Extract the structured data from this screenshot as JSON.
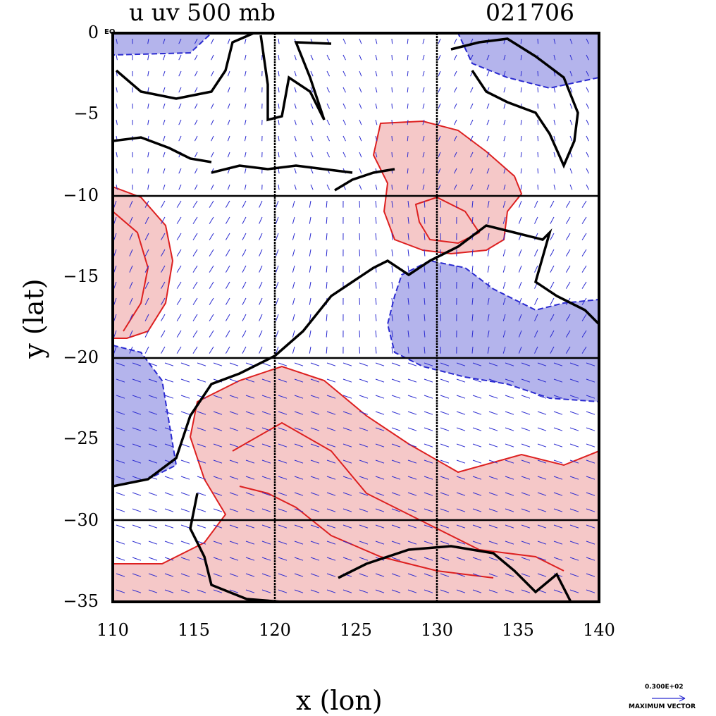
{
  "title_left": "u uv 500 mb",
  "title_right": "021706",
  "xlabel": "x (lon)",
  "ylabel": "y (lat)",
  "x_ticks": [
    "110",
    "115",
    "120",
    "125",
    "130",
    "135",
    "140"
  ],
  "y_ticks": [
    "0",
    "−5",
    "−10",
    "−15",
    "−20",
    "−25",
    "−30",
    "−35"
  ],
  "eq_label": "EQ",
  "legend": {
    "value": "0.300E+02",
    "label": "MAXIMUM VECTOR"
  },
  "colors": {
    "positive_fill": "#f5c8c8",
    "negative_fill": "#b4b4ec",
    "positive_line": "#dd2020",
    "negative_line": "#2a2ad0",
    "vector": "#2a2ad0",
    "coast": "#000000"
  },
  "chart_data": {
    "type": "heatmap",
    "description_fields": "u-wind contours with uv vectors at 500 mb",
    "xlim": [
      110,
      140
    ],
    "ylim": [
      -35,
      0
    ],
    "grid_lines_lon": [
      120,
      130
    ],
    "grid_lines_lat": [
      -10,
      -20,
      -30
    ]
  }
}
